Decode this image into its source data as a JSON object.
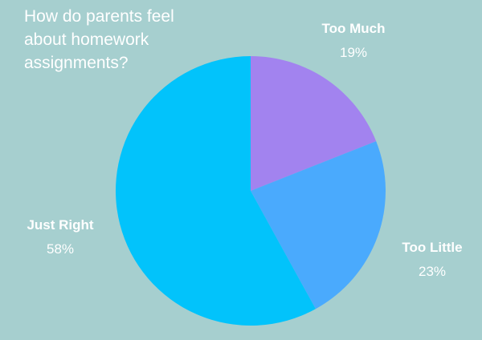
{
  "chart_data": {
    "type": "pie",
    "title_lines": [
      "How do parents feel",
      "about homework",
      "assignments?"
    ],
    "slices": [
      {
        "label": "Too Much",
        "value": 19,
        "value_label": "19%",
        "color": "#a283ef"
      },
      {
        "label": "Too Little",
        "value": 23,
        "value_label": "23%",
        "color": "#4aaafd"
      },
      {
        "label": "Just Right",
        "value": 58,
        "value_label": "58%",
        "color": "#02c3fb"
      }
    ]
  },
  "colors": {
    "background": "#a6cfcf",
    "text": "#ffffff"
  }
}
